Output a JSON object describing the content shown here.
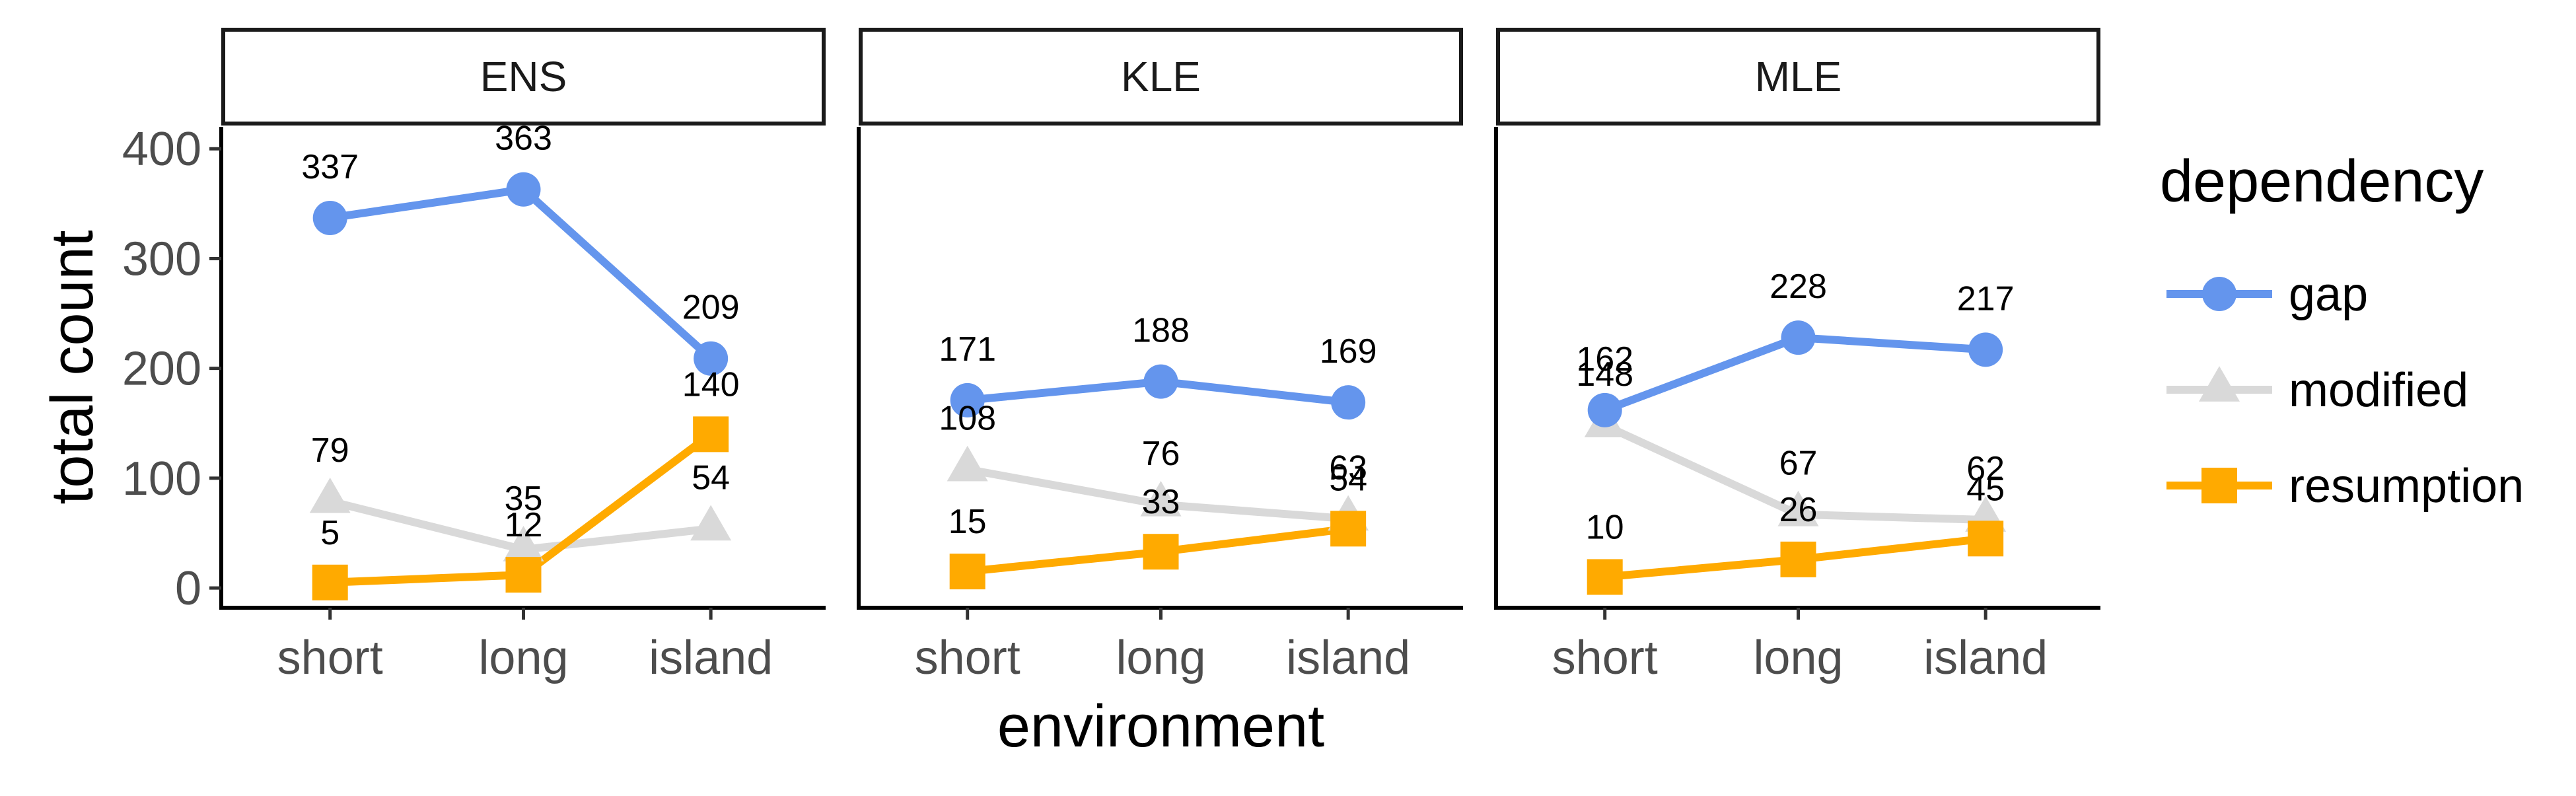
{
  "chart_data": {
    "type": "line",
    "xlabel": "environment",
    "ylabel": "total count",
    "categories": [
      "short",
      "long",
      "island"
    ],
    "y_ticks": [
      0,
      100,
      200,
      300,
      400
    ],
    "ylim": [
      -18,
      420
    ],
    "grid": false,
    "legend": {
      "title": "dependency",
      "placement": "right",
      "entries": [
        "gap",
        "modified",
        "resumption"
      ]
    },
    "panels": [
      {
        "strip": "ENS",
        "series": [
          {
            "name": "gap",
            "values": [
              337,
              363,
              209
            ]
          },
          {
            "name": "modified",
            "values": [
              79,
              35,
              54
            ]
          },
          {
            "name": "resumption",
            "values": [
              5,
              12,
              140
            ]
          }
        ]
      },
      {
        "strip": "KLE",
        "series": [
          {
            "name": "gap",
            "values": [
              171,
              188,
              169
            ]
          },
          {
            "name": "modified",
            "values": [
              108,
              76,
              63
            ]
          },
          {
            "name": "resumption",
            "values": [
              15,
              33,
              54
            ]
          }
        ]
      },
      {
        "strip": "MLE",
        "series": [
          {
            "name": "gap",
            "values": [
              162,
              228,
              217
            ]
          },
          {
            "name": "modified",
            "values": [
              148,
              67,
              62
            ]
          },
          {
            "name": "resumption",
            "values": [
              10,
              26,
              45
            ]
          }
        ]
      }
    ],
    "colors": {
      "gap": "#6495ED",
      "modified": "#D9D9D9",
      "resumption": "#FFAA00"
    },
    "markers": {
      "gap": "circle",
      "modified": "triangle",
      "resumption": "square"
    }
  }
}
